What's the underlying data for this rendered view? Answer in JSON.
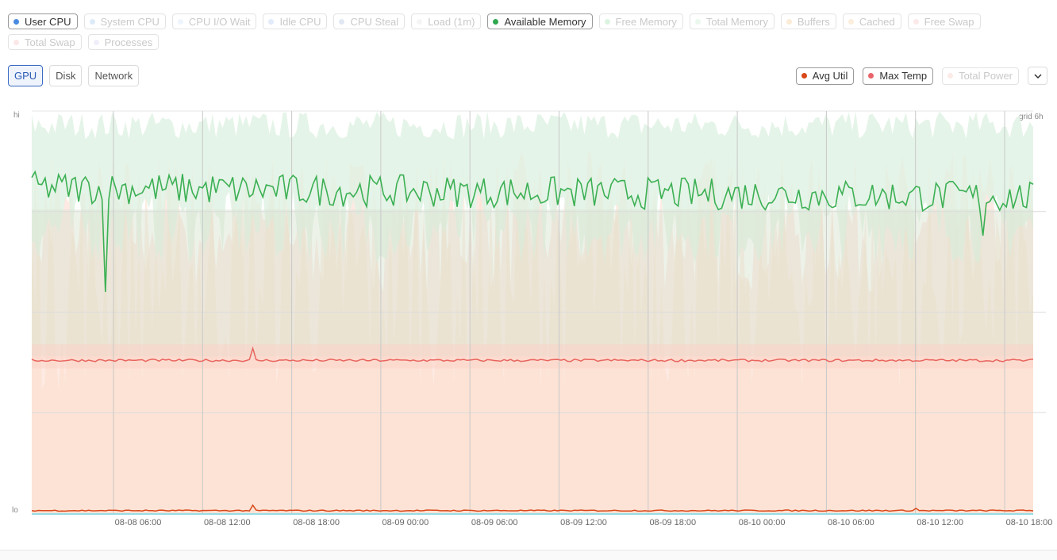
{
  "legend": {
    "row1": [
      {
        "label": "User CPU",
        "color": "#4a8be0",
        "active": true
      },
      {
        "label": "System CPU",
        "color": "#9fc6ee",
        "active": false
      },
      {
        "label": "CPU I/O Wait",
        "color": "#cfe2f5",
        "active": false
      },
      {
        "label": "Idle CPU",
        "color": "#a9c7f2",
        "active": false
      },
      {
        "label": "CPU Steal",
        "color": "#a9bde0",
        "active": false
      },
      {
        "label": "Load (1m)",
        "color": "#e2e2e2",
        "active": false
      },
      {
        "label": "Available Memory",
        "color": "#2fa84f",
        "active": true
      },
      {
        "label": "Free Memory",
        "color": "#9bdca9",
        "active": false
      },
      {
        "label": "Total Memory",
        "color": "#c6ebcd",
        "active": false
      },
      {
        "label": "Buffers",
        "color": "#f1c98a",
        "active": false
      },
      {
        "label": "Cached",
        "color": "#f6cf9b",
        "active": false
      },
      {
        "label": "Free Swap",
        "color": "#f7c0c4",
        "active": false
      }
    ],
    "row2": [
      {
        "label": "Total Swap",
        "color": "#f3b9be",
        "active": false
      },
      {
        "label": "Processes",
        "color": "#d7cff0",
        "active": false
      }
    ]
  },
  "tabs": [
    {
      "label": "GPU",
      "active": true
    },
    {
      "label": "Disk",
      "active": false
    },
    {
      "label": "Network",
      "active": false
    }
  ],
  "gpu_legend": [
    {
      "label": "Avg Util",
      "color": "#d9481a",
      "active": true
    },
    {
      "label": "Max Temp",
      "color": "#e9646a",
      "active": true
    },
    {
      "label": "Total Power",
      "color": "#f5c2b6",
      "active": false
    }
  ],
  "axis": {
    "hi": "hi",
    "lo": "lo",
    "grid": "grid 6h"
  },
  "chart_data": {
    "type": "line",
    "x_tick_labels": [
      "08-08 06:00",
      "08-08 12:00",
      "08-08 18:00",
      "08-09 00:00",
      "08-09 06:00",
      "08-09 12:00",
      "08-09 18:00",
      "08-10 00:00",
      "08-10 06:00",
      "08-10 12:00",
      "08-10 18:00"
    ],
    "y_labels": {
      "top": "hi",
      "bottom": "lo"
    },
    "grid_interval": "6h",
    "series": [
      {
        "name": "Available Memory",
        "color": "#3cb054",
        "typical_level": 0.82,
        "min_level": 0.55
      },
      {
        "name": "Max Temp",
        "color": "#e8655e",
        "typical_level": 0.38,
        "max_level": 0.41
      },
      {
        "name": "Avg Util",
        "color": "#d9481a",
        "typical_level": 0.005,
        "max_level": 0.02
      }
    ]
  }
}
